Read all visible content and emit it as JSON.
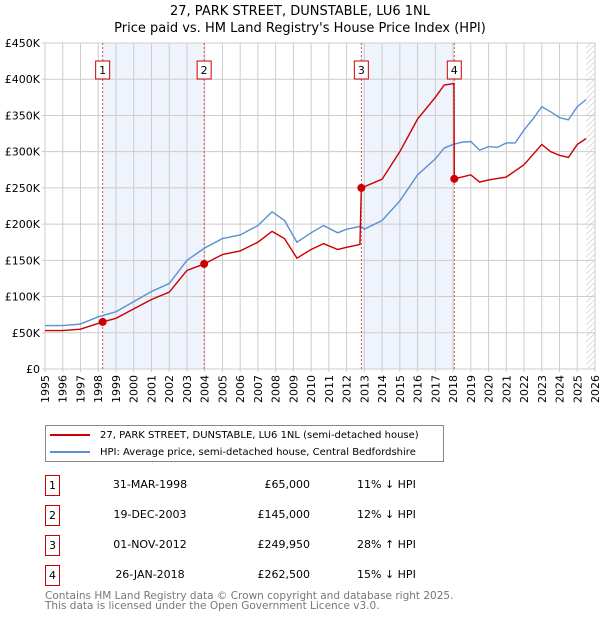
{
  "chart_data": {
    "type": "line",
    "title": "27, PARK STREET, DUNSTABLE, LU6 1NL",
    "subtitle": "Price paid vs. HM Land Registry's House Price Index (HPI)",
    "xlim": [
      1995,
      2026
    ],
    "ylim": [
      0,
      450000
    ],
    "x_ticks": [
      "1995",
      "1996",
      "1997",
      "1998",
      "1999",
      "2000",
      "2001",
      "2002",
      "2003",
      "2004",
      "2005",
      "2006",
      "2007",
      "2008",
      "2009",
      "2010",
      "2011",
      "2012",
      "2013",
      "2014",
      "2015",
      "2016",
      "2017",
      "2018",
      "2019",
      "2020",
      "2021",
      "2022",
      "2023",
      "2024",
      "2025",
      "2026"
    ],
    "y_ticks": [
      {
        "v": 0,
        "l": "£0"
      },
      {
        "v": 50000,
        "l": "£50K"
      },
      {
        "v": 100000,
        "l": "£100K"
      },
      {
        "v": 150000,
        "l": "£150K"
      },
      {
        "v": 200000,
        "l": "£200K"
      },
      {
        "v": 250000,
        "l": "£250K"
      },
      {
        "v": 300000,
        "l": "£300K"
      },
      {
        "v": 350000,
        "l": "£350K"
      },
      {
        "v": 400000,
        "l": "£400K"
      },
      {
        "v": 450000,
        "l": "£450K"
      }
    ],
    "grid": true,
    "shaded_ranges": [
      [
        1998.25,
        2003.97
      ],
      [
        2012.83,
        2018.07
      ]
    ],
    "forecast_hatch_from": 2025.5,
    "series": [
      {
        "name": "27, PARK STREET, DUNSTABLE, LU6 1NL (semi-detached house)",
        "color": "#cc0000",
        "x": [
          1995,
          1996,
          1997,
          1998.25,
          1999,
          2000,
          2001,
          2002,
          2003,
          2003.97,
          2005,
          2006,
          2007,
          2007.8,
          2008.5,
          2009.2,
          2010,
          2010.7,
          2011.5,
          2012,
          2012.75,
          2012.83,
          2014,
          2015,
          2016,
          2017,
          2017.5,
          2018.05,
          2018.07,
          2019,
          2019.5,
          2020,
          2021,
          2022,
          2023,
          2023.5,
          2024,
          2024.5,
          2025,
          2025.5
        ],
        "y": [
          53000,
          53000,
          55000,
          65000,
          70000,
          83000,
          96000,
          106000,
          136000,
          145000,
          158000,
          163000,
          175000,
          190000,
          180000,
          153000,
          165000,
          173000,
          165000,
          168000,
          172000,
          249950,
          262000,
          300000,
          345000,
          375000,
          392000,
          394000,
          262500,
          268000,
          258000,
          261000,
          265000,
          282000,
          310000,
          300000,
          295000,
          292000,
          310000,
          318000
        ]
      },
      {
        "name": "HPI: Average price, semi-detached house, Central Bedfordshire",
        "color": "#5b8fd4",
        "x": [
          1995,
          1996,
          1997,
          1998,
          1999,
          2000,
          2001,
          2002,
          2003,
          2004,
          2005,
          2006,
          2007,
          2007.8,
          2008.5,
          2009.2,
          2010,
          2010.7,
          2011.5,
          2012,
          2012.8,
          2013,
          2014,
          2015,
          2016,
          2017,
          2017.5,
          2018,
          2018.5,
          2019,
          2019.5,
          2020,
          2020.5,
          2021,
          2021.5,
          2022,
          2022.5,
          2023,
          2023.5,
          2024,
          2024.5,
          2025,
          2025.5
        ],
        "y": [
          60000,
          60000,
          62000,
          72000,
          79000,
          93000,
          107000,
          118000,
          150000,
          167000,
          180000,
          185000,
          198000,
          217000,
          205000,
          175000,
          188000,
          198000,
          188000,
          193000,
          197000,
          193000,
          205000,
          232000,
          268000,
          290000,
          305000,
          310000,
          313000,
          314000,
          302000,
          307000,
          306000,
          312000,
          312000,
          330000,
          345000,
          362000,
          355000,
          347000,
          344000,
          362000,
          372000
        ]
      }
    ],
    "sales": [
      {
        "num": "1",
        "x": 1998.25,
        "y": 65000,
        "date": "31-MAR-1998",
        "price": "£65,000",
        "hpi": "11% ↓ HPI"
      },
      {
        "num": "2",
        "x": 2003.97,
        "y": 145000,
        "date": "19-DEC-2003",
        "price": "£145,000",
        "hpi": "12% ↓ HPI"
      },
      {
        "num": "3",
        "x": 2012.83,
        "y": 249950,
        "date": "01-NOV-2012",
        "price": "£249,950",
        "hpi": "28% ↑ HPI"
      },
      {
        "num": "4",
        "x": 2018.07,
        "y": 262500,
        "date": "26-JAN-2018",
        "price": "£262,500",
        "hpi": "15% ↓ HPI"
      }
    ],
    "legend_placement": "below"
  },
  "footer": {
    "line1": "Contains HM Land Registry data © Crown copyright and database right 2025.",
    "line2": "This data is licensed under the Open Government Licence v3.0."
  }
}
